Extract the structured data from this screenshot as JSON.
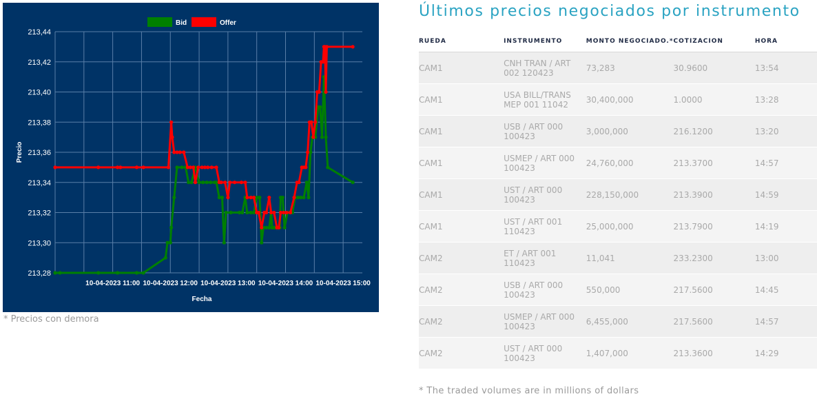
{
  "chart_note": "* Precios con demora",
  "table": {
    "title": "Últimos precios negociados por instrumento",
    "headers": {
      "rueda": "RUEDA",
      "instrumento": "INSTRUMENTO",
      "monto": "MONTO NEGOCIADO.*",
      "cotizacion": "COTIZACION",
      "hora": "HORA"
    },
    "rows": [
      {
        "rueda": "CAM1",
        "instrumento": "CNH TRAN / ART 002 120423",
        "monto": "73,283",
        "cotizacion": "30.9600",
        "hora": "13:54"
      },
      {
        "rueda": "CAM1",
        "instrumento": "USA BILL/TRANS MEP 001 11042",
        "monto": "30,400,000",
        "cotizacion": "1.0000",
        "hora": "13:28"
      },
      {
        "rueda": "CAM1",
        "instrumento": "USB / ART 000 100423",
        "monto": "3,000,000",
        "cotizacion": "216.1200",
        "hora": "13:20"
      },
      {
        "rueda": "CAM1",
        "instrumento": "USMEP / ART 000 100423",
        "monto": "24,760,000",
        "cotizacion": "213.3700",
        "hora": "14:57"
      },
      {
        "rueda": "CAM1",
        "instrumento": "UST / ART 000 100423",
        "monto": "228,150,000",
        "cotizacion": "213.3900",
        "hora": "14:59"
      },
      {
        "rueda": "CAM1",
        "instrumento": "UST / ART 001 110423",
        "monto": "25,000,000",
        "cotizacion": "213.7900",
        "hora": "14:19"
      },
      {
        "rueda": "CAM2",
        "instrumento": "ET / ART 001 110423",
        "monto": "11,041",
        "cotizacion": "233.2300",
        "hora": "13:00"
      },
      {
        "rueda": "CAM2",
        "instrumento": "USB / ART 000 100423",
        "monto": "550,000",
        "cotizacion": "217.5600",
        "hora": "14:45"
      },
      {
        "rueda": "CAM2",
        "instrumento": "USMEP / ART 000 100423",
        "monto": "6,455,000",
        "cotizacion": "217.5600",
        "hora": "14:57"
      },
      {
        "rueda": "CAM2",
        "instrumento": "UST / ART 000 100423",
        "monto": "1,407,000",
        "cotizacion": "213.3600",
        "hora": "14:29"
      }
    ],
    "note": "* The traded volumes are in millions of dollars"
  },
  "chart_data": {
    "type": "line",
    "xlabel": "Fecha",
    "ylabel": "Precio",
    "ylim": [
      213.28,
      213.44
    ],
    "yticks": [
      "213,28",
      "213,30",
      "213,32",
      "213,34",
      "213,36",
      "213,38",
      "213,40",
      "213,42",
      "213,44"
    ],
    "xlim": [
      "10:00",
      "15:20"
    ],
    "xticks": [
      {
        "t": "11:00",
        "label": "10-04-2023 11:00"
      },
      {
        "t": "12:00",
        "label": "10-04-2023 12:00"
      },
      {
        "t": "13:00",
        "label": "10-04-2023 13:00"
      },
      {
        "t": "14:00",
        "label": "10-04-2023 14:00"
      },
      {
        "t": "15:00",
        "label": "10-04-2023 15:00"
      }
    ],
    "legend_position": "top-center",
    "grid": true,
    "colors": {
      "background": "#003366",
      "grid": "#5a7fa8",
      "text": "#ffffff",
      "Bid": "#008000",
      "Offer": "#ff0000"
    },
    "series": [
      {
        "name": "Bid",
        "points": [
          [
            "10:00",
            213.28
          ],
          [
            "10:05",
            213.28
          ],
          [
            "10:45",
            213.28
          ],
          [
            "11:05",
            213.28
          ],
          [
            "11:25",
            213.28
          ],
          [
            "11:32",
            213.28
          ],
          [
            "11:55",
            213.29
          ],
          [
            "11:57",
            213.3
          ],
          [
            "12:00",
            213.3
          ],
          [
            "12:01",
            213.31
          ],
          [
            "12:04",
            213.33
          ],
          [
            "12:07",
            213.35
          ],
          [
            "12:12",
            213.35
          ],
          [
            "12:16",
            213.35
          ],
          [
            "12:19",
            213.34
          ],
          [
            "12:22",
            213.34
          ],
          [
            "12:26",
            213.35
          ],
          [
            "12:30",
            213.34
          ],
          [
            "12:34",
            213.34
          ],
          [
            "12:38",
            213.34
          ],
          [
            "12:42",
            213.34
          ],
          [
            "12:46",
            213.34
          ],
          [
            "12:48",
            213.34
          ],
          [
            "12:51",
            213.33
          ],
          [
            "12:54",
            213.33
          ],
          [
            "12:56",
            213.3
          ],
          [
            "12:58",
            213.32
          ],
          [
            "13:03",
            213.32
          ],
          [
            "13:12",
            213.32
          ],
          [
            "13:15",
            213.32
          ],
          [
            "13:18",
            213.33
          ],
          [
            "13:20",
            213.32
          ],
          [
            "13:24",
            213.32
          ],
          [
            "13:27",
            213.32
          ],
          [
            "13:30",
            213.33
          ],
          [
            "13:33",
            213.33
          ],
          [
            "13:35",
            213.3
          ],
          [
            "13:37",
            213.31
          ],
          [
            "13:40",
            213.31
          ],
          [
            "13:43",
            213.31
          ],
          [
            "13:45",
            213.32
          ],
          [
            "13:46",
            213.31
          ],
          [
            "13:48",
            213.31
          ],
          [
            "13:50",
            213.31
          ],
          [
            "13:52",
            213.31
          ],
          [
            "13:54",
            213.31
          ],
          [
            "13:55",
            213.33
          ],
          [
            "13:57",
            213.33
          ],
          [
            "13:59",
            213.31
          ],
          [
            "14:02",
            213.32
          ],
          [
            "14:07",
            213.32
          ],
          [
            "14:10",
            213.33
          ],
          [
            "14:13",
            213.33
          ],
          [
            "14:16",
            213.33
          ],
          [
            "14:19",
            213.33
          ],
          [
            "14:22",
            213.34
          ],
          [
            "14:24",
            213.33
          ],
          [
            "14:26",
            213.36
          ],
          [
            "14:28",
            213.37
          ],
          [
            "14:31",
            213.37
          ],
          [
            "14:34",
            213.39
          ],
          [
            "14:36",
            213.39
          ],
          [
            "14:38",
            213.37
          ],
          [
            "14:40",
            213.41
          ],
          [
            "14:42",
            213.37
          ],
          [
            "14:44",
            213.35
          ],
          [
            "15:10",
            213.34
          ]
        ]
      },
      {
        "name": "Offer",
        "points": [
          [
            "10:00",
            213.35
          ],
          [
            "10:45",
            213.35
          ],
          [
            "11:05",
            213.35
          ],
          [
            "11:08",
            213.35
          ],
          [
            "11:25",
            213.35
          ],
          [
            "11:32",
            213.35
          ],
          [
            "11:58",
            213.35
          ],
          [
            "12:01",
            213.38
          ],
          [
            "12:02",
            213.37
          ],
          [
            "12:04",
            213.36
          ],
          [
            "12:07",
            213.36
          ],
          [
            "12:10",
            213.36
          ],
          [
            "12:14",
            213.36
          ],
          [
            "12:18",
            213.35
          ],
          [
            "12:21",
            213.35
          ],
          [
            "12:24",
            213.35
          ],
          [
            "12:26",
            213.34
          ],
          [
            "12:29",
            213.35
          ],
          [
            "12:33",
            213.35
          ],
          [
            "12:36",
            213.35
          ],
          [
            "12:39",
            213.35
          ],
          [
            "12:43",
            213.35
          ],
          [
            "12:48",
            213.35
          ],
          [
            "12:51",
            213.34
          ],
          [
            "12:53",
            213.34
          ],
          [
            "12:57",
            213.34
          ],
          [
            "13:00",
            213.33
          ],
          [
            "13:02",
            213.34
          ],
          [
            "13:07",
            213.34
          ],
          [
            "13:14",
            213.34
          ],
          [
            "13:18",
            213.34
          ],
          [
            "13:20",
            213.33
          ],
          [
            "13:24",
            213.33
          ],
          [
            "13:27",
            213.33
          ],
          [
            "13:30",
            213.32
          ],
          [
            "13:32",
            213.32
          ],
          [
            "13:35",
            213.31
          ],
          [
            "13:38",
            213.32
          ],
          [
            "13:40",
            213.32
          ],
          [
            "13:43",
            213.33
          ],
          [
            "13:45",
            213.32
          ],
          [
            "13:48",
            213.32
          ],
          [
            "13:51",
            213.31
          ],
          [
            "13:53",
            213.31
          ],
          [
            "13:55",
            213.32
          ],
          [
            "13:58",
            213.32
          ],
          [
            "14:01",
            213.32
          ],
          [
            "14:05",
            213.32
          ],
          [
            "14:09",
            213.33
          ],
          [
            "14:12",
            213.34
          ],
          [
            "14:14",
            213.34
          ],
          [
            "14:17",
            213.35
          ],
          [
            "14:19",
            213.35
          ],
          [
            "14:21",
            213.35
          ],
          [
            "14:23",
            213.36
          ],
          [
            "14:25",
            213.38
          ],
          [
            "14:27",
            213.38
          ],
          [
            "14:29",
            213.37
          ],
          [
            "14:31",
            213.38
          ],
          [
            "14:33",
            213.4
          ],
          [
            "14:35",
            213.4
          ],
          [
            "14:37",
            213.42
          ],
          [
            "14:39",
            213.42
          ],
          [
            "14:40",
            213.43
          ],
          [
            "14:41",
            213.43
          ],
          [
            "14:42",
            213.4
          ],
          [
            "14:43",
            213.43
          ],
          [
            "15:10",
            213.43
          ]
        ]
      }
    ]
  }
}
